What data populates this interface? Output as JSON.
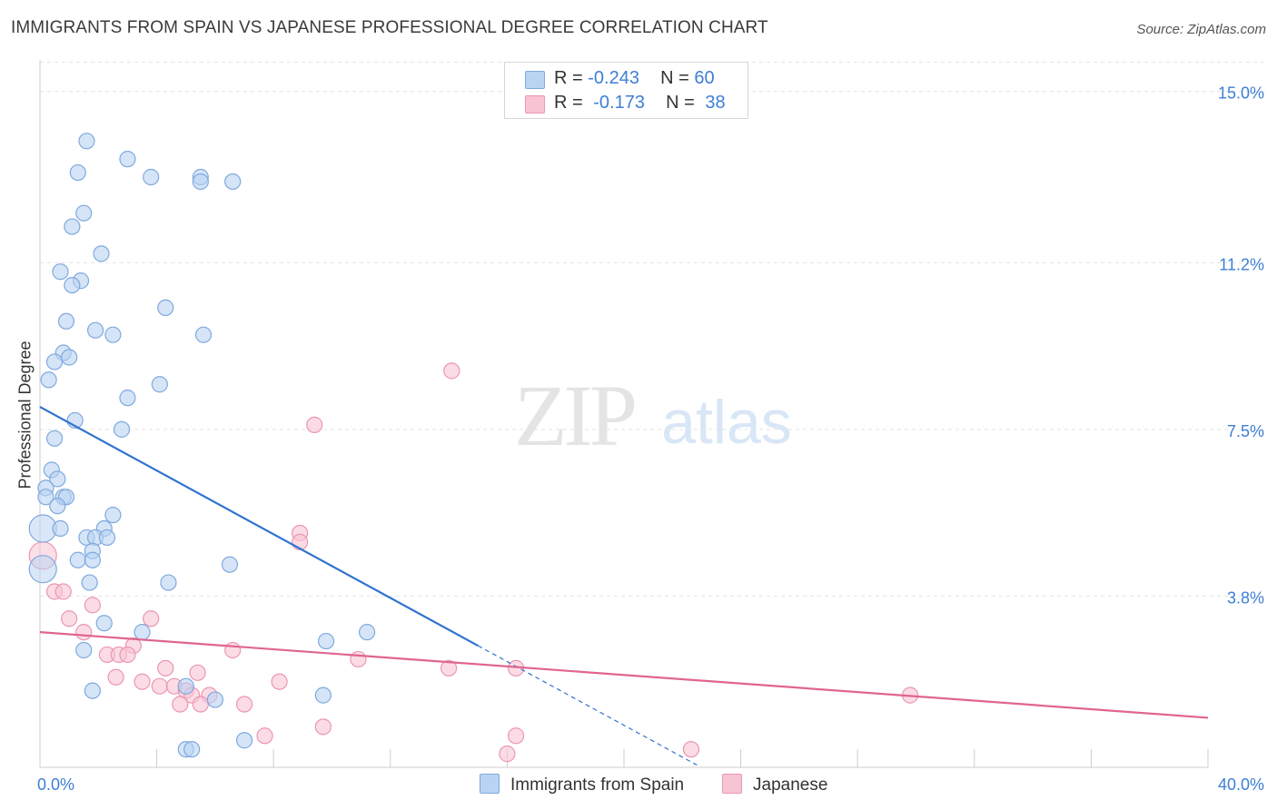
{
  "title": "IMMIGRANTS FROM SPAIN VS JAPANESE PROFESSIONAL DEGREE CORRELATION CHART",
  "source": "Source: ZipAtlas.com",
  "watermark": {
    "zip": "ZIP",
    "atlas": "atlas"
  },
  "legend": {
    "r_label": "R =",
    "n_label": "N =",
    "series1": {
      "r": "-0.243",
      "n": "60"
    },
    "series2": {
      "r": "-0.173",
      "n": "38"
    }
  },
  "colors": {
    "series1_fill": "#b9d3f2",
    "series1_stroke": "#7fa9de",
    "series1_line": "#2f73cf",
    "series2_fill": "#f8c4d4",
    "series2_stroke": "#eb96b2",
    "series2_line": "#e0658f",
    "tick_label": "#3d7fd6",
    "grid": "#e3e3e3"
  },
  "chart_data": {
    "type": "scatter",
    "title": "IMMIGRANTS FROM SPAIN VS JAPANESE PROFESSIONAL DEGREE CORRELATION CHART",
    "xlabel": "",
    "ylabel": "Professional Degree",
    "xlim": [
      0,
      40
    ],
    "ylim": [
      0,
      15.7
    ],
    "x_tick_labels": [
      "0.0%",
      "40.0%"
    ],
    "y_ticks": [
      3.8,
      7.5,
      11.2,
      15.0
    ],
    "y_tick_labels": [
      "3.8%",
      "7.5%",
      "11.2%",
      "15.0%"
    ],
    "grid": true,
    "legend_position": "top-center",
    "series": [
      {
        "name": "Immigrants from Spain",
        "trend": {
          "x": [
            0,
            15
          ],
          "y": [
            8.0,
            2.7
          ],
          "dashed_to": [
            22.5,
            0.05
          ]
        },
        "points": [
          [
            1.6,
            13.9
          ],
          [
            3.0,
            13.5
          ],
          [
            1.3,
            13.2
          ],
          [
            3.8,
            13.1
          ],
          [
            5.5,
            13.1
          ],
          [
            5.5,
            13.0
          ],
          [
            6.6,
            13.0
          ],
          [
            1.5,
            12.3
          ],
          [
            1.1,
            12.0
          ],
          [
            2.1,
            11.4
          ],
          [
            0.7,
            11.0
          ],
          [
            1.4,
            10.8
          ],
          [
            1.1,
            10.7
          ],
          [
            4.3,
            10.2
          ],
          [
            0.9,
            9.9
          ],
          [
            1.9,
            9.7
          ],
          [
            2.5,
            9.6
          ],
          [
            5.6,
            9.6
          ],
          [
            0.8,
            9.2
          ],
          [
            1.0,
            9.1
          ],
          [
            0.5,
            9.0
          ],
          [
            0.3,
            8.6
          ],
          [
            4.1,
            8.5
          ],
          [
            3.0,
            8.2
          ],
          [
            1.2,
            7.7
          ],
          [
            2.8,
            7.5
          ],
          [
            0.5,
            7.3
          ],
          [
            0.4,
            6.6
          ],
          [
            0.6,
            6.4
          ],
          [
            0.2,
            6.2
          ],
          [
            0.2,
            6.0
          ],
          [
            0.8,
            6.0
          ],
          [
            0.9,
            6.0
          ],
          [
            0.6,
            5.8
          ],
          [
            2.5,
            5.6
          ],
          [
            0.1,
            5.3
          ],
          [
            0.7,
            5.3
          ],
          [
            2.2,
            5.3
          ],
          [
            1.6,
            5.1
          ],
          [
            1.9,
            5.1
          ],
          [
            2.3,
            5.1
          ],
          [
            1.8,
            4.8
          ],
          [
            1.3,
            4.6
          ],
          [
            1.8,
            4.6
          ],
          [
            6.5,
            4.5
          ],
          [
            0.1,
            4.4
          ],
          [
            1.7,
            4.1
          ],
          [
            4.4,
            4.1
          ],
          [
            2.2,
            3.2
          ],
          [
            3.5,
            3.0
          ],
          [
            11.2,
            3.0
          ],
          [
            9.8,
            2.8
          ],
          [
            1.5,
            2.6
          ],
          [
            5.0,
            1.8
          ],
          [
            1.8,
            1.7
          ],
          [
            9.7,
            1.6
          ],
          [
            7.0,
            0.6
          ],
          [
            5.0,
            0.4
          ],
          [
            5.2,
            0.4
          ],
          [
            6.0,
            1.5
          ]
        ]
      },
      {
        "name": "Japanese",
        "trend": {
          "x": [
            0,
            40
          ],
          "y": [
            3.0,
            1.1
          ]
        },
        "points": [
          [
            14.1,
            8.8
          ],
          [
            9.4,
            7.6
          ],
          [
            8.9,
            5.2
          ],
          [
            8.9,
            5.0
          ],
          [
            0.1,
            4.7
          ],
          [
            0.5,
            3.9
          ],
          [
            0.8,
            3.9
          ],
          [
            1.8,
            3.6
          ],
          [
            3.8,
            3.3
          ],
          [
            1.0,
            3.3
          ],
          [
            1.5,
            3.0
          ],
          [
            3.2,
            2.7
          ],
          [
            6.6,
            2.6
          ],
          [
            2.3,
            2.5
          ],
          [
            2.7,
            2.5
          ],
          [
            3.0,
            2.5
          ],
          [
            10.9,
            2.4
          ],
          [
            4.3,
            2.2
          ],
          [
            5.4,
            2.1
          ],
          [
            14.0,
            2.2
          ],
          [
            16.3,
            2.2
          ],
          [
            2.6,
            2.0
          ],
          [
            3.5,
            1.9
          ],
          [
            4.1,
            1.8
          ],
          [
            4.6,
            1.8
          ],
          [
            8.2,
            1.9
          ],
          [
            5.0,
            1.7
          ],
          [
            5.2,
            1.6
          ],
          [
            5.8,
            1.6
          ],
          [
            29.8,
            1.6
          ],
          [
            5.5,
            1.4
          ],
          [
            4.8,
            1.4
          ],
          [
            7.0,
            1.4
          ],
          [
            9.7,
            0.9
          ],
          [
            7.7,
            0.7
          ],
          [
            16.3,
            0.7
          ],
          [
            16.0,
            0.3
          ],
          [
            22.3,
            0.4
          ]
        ]
      }
    ]
  }
}
